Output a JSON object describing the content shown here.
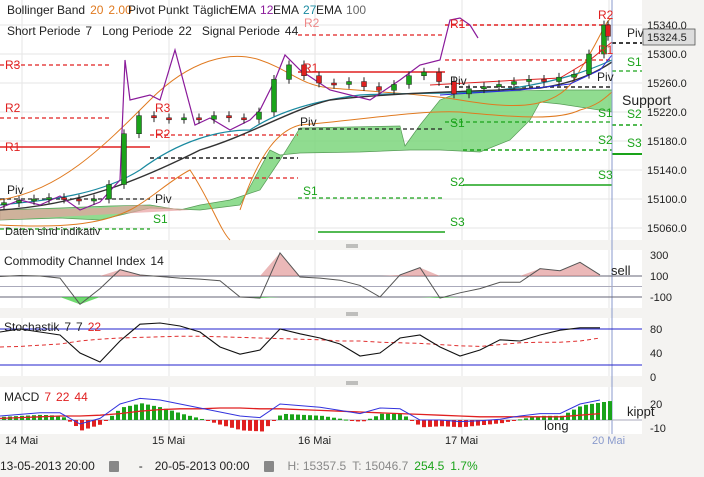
{
  "header": {
    "bollinger_label": "Bollinger Band",
    "bollinger_period": "20",
    "bollinger_dev": "2.00",
    "pivot_label": "Pivot Punkt",
    "pivot_mode": "Täglich",
    "ema_label": "EMA",
    "ema1": "12",
    "ema2": "27",
    "ema3": "100",
    "short_label": "Short Periode",
    "short_val": "7",
    "long_label": "Long Periode",
    "long_val": "22",
    "signal_label": "Signal Periode",
    "signal_val": "44"
  },
  "annotations": {
    "r3": "R3",
    "r2": "R2",
    "r1": "R1",
    "piv": "Piv",
    "s1": "S1",
    "s2": "S2",
    "s3": "S3",
    "support": "Support",
    "disclaimer": "Daten sind indikativ",
    "sell": "sell",
    "kippt": "kippt",
    "long": "long"
  },
  "colors": {
    "up": "#1aa31a",
    "down": "#e02020",
    "bollinger": "#e07a20",
    "ema12": "#8a1a9a",
    "ema27": "#1a8aa0",
    "ema100": "#333333",
    "cloud": "#7dd67d"
  },
  "chart_data": [
    {
      "type": "candlestick",
      "title": "",
      "x_tick_labels": [
        "14 Mai",
        "15 Mai",
        "16 Mai",
        "17 Mai",
        "20 Mai"
      ],
      "y_tick_labels": [
        "15340.0",
        "15300.0",
        "15260.0",
        "15220.0",
        "15180.0",
        "15140.0",
        "15100.0",
        "15060.0"
      ],
      "ylim": [
        15046.7,
        15357.5
      ],
      "current_value": "15324.5",
      "close": [
        15095,
        15098,
        15100,
        15102,
        15100,
        15098,
        15100,
        15120,
        15190,
        15215,
        15212,
        15210,
        15212,
        15210,
        15215,
        15212,
        15210,
        15220,
        15265,
        15285,
        15270,
        15260,
        15258,
        15262,
        15255,
        15250,
        15258,
        15270,
        15275,
        15262,
        15245,
        15252,
        15255,
        15258,
        15262,
        15265,
        15262,
        15268,
        15272,
        15300,
        15340,
        15324.5
      ],
      "grid": true
    },
    {
      "type": "line",
      "title": "Commodity Channel Index",
      "period": "14",
      "y_tick_labels": [
        "300",
        "100",
        "-100"
      ],
      "ylim": [
        -200,
        350
      ],
      "values": [
        95,
        105,
        100,
        80,
        -170,
        -20,
        160,
        110,
        95,
        80,
        70,
        55,
        -100,
        -110,
        320,
        90,
        80,
        60,
        10,
        -100,
        110,
        180,
        -110,
        -60,
        -20,
        40,
        40,
        170,
        150,
        230,
        110
      ]
    },
    {
      "type": "line",
      "title": "Stochastik",
      "params": [
        "7",
        "7",
        "22"
      ],
      "y_tick_labels": [
        "80",
        "40",
        "0"
      ],
      "ylim": [
        0,
        100
      ],
      "series": [
        {
          "values": [
            75,
            80,
            75,
            70,
            40,
            25,
            60,
            88,
            90,
            85,
            75,
            50,
            38,
            45,
            80,
            72,
            65,
            55,
            35,
            40,
            65,
            70,
            50,
            35,
            45,
            62,
            60,
            70,
            78,
            82,
            82
          ]
        },
        {
          "values": [
            50,
            51,
            53,
            55,
            60,
            63,
            65,
            66,
            67,
            68,
            68,
            67,
            66,
            65,
            64,
            63,
            62,
            60,
            60,
            58,
            57,
            56,
            54,
            52,
            51,
            54,
            57,
            58,
            58,
            60,
            65
          ]
        }
      ]
    },
    {
      "type": "line",
      "title": "MACD",
      "params": [
        "7",
        "22",
        "44"
      ],
      "y_tick_labels": [
        "20",
        "-10"
      ],
      "ylim": [
        -12,
        27
      ],
      "series": [
        {
          "values": [
            5,
            7,
            9,
            9,
            -5,
            2,
            20,
            27,
            25,
            20,
            15,
            10,
            5,
            3,
            20,
            18,
            16,
            12,
            8,
            15,
            14,
            0,
            0,
            -2,
            -1,
            1,
            5,
            8,
            8,
            20,
            25
          ]
        },
        {
          "values": [
            2,
            3,
            4,
            5,
            5,
            6,
            8,
            11,
            13,
            14,
            14,
            15,
            15,
            14,
            14,
            13,
            12,
            11,
            10,
            9,
            8,
            7,
            6,
            5,
            4,
            4,
            4,
            4,
            4,
            6,
            8
          ]
        }
      ]
    }
  ],
  "footer": {
    "from": "13-05-2013 20:00",
    "dash": "-",
    "to": "20-05-2013 00:00",
    "high": "H: 15357.5",
    "low": "T: 15046.7",
    "change": "254.5",
    "change_pct": "1.7%"
  }
}
